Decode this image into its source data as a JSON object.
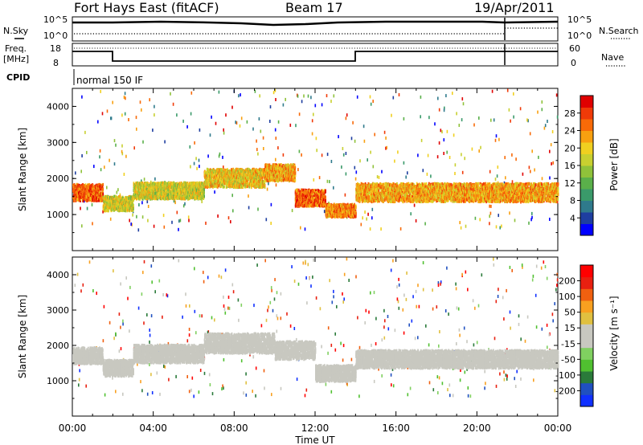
{
  "header": {
    "station": "Fort Hays East (fitACF)",
    "beam": "Beam 17",
    "date": "19/Apr/2011"
  },
  "status_rows": {
    "nsky_label": "N.Sky",
    "nsearch_label": "N.Search",
    "nsky_ticks": [
      "10^5",
      "10^0"
    ],
    "nsearch_ticks": [
      "10^5",
      "10^0"
    ],
    "freq_label_line1": "Freq.",
    "freq_label_line2": "[MHz]",
    "freq_ticks": [
      "18",
      "8"
    ],
    "nave_label": "Nave",
    "nave_ticks": [
      "60",
      "0"
    ],
    "cpid_label": "CPID",
    "cpid_value": "normal 150 IF"
  },
  "colors": {
    "power_scale": [
      "#0000ff",
      "#1e3ea0",
      "#2f7a8c",
      "#3a9a6a",
      "#5ab04a",
      "#8fc23a",
      "#c8d030",
      "#f0d020",
      "#f8a010",
      "#f86a08",
      "#f03a08",
      "#e00000"
    ],
    "velocity_scale": [
      "#1030ff",
      "#2050c0",
      "#2a7a3a",
      "#50c030",
      "#80d060",
      "#c8c8c0",
      "#c8c8c0",
      "#e0c040",
      "#f8a020",
      "#f06010",
      "#e82010",
      "#ff0000"
    ]
  },
  "chart_data": [
    {
      "type": "heatmap",
      "name": "power",
      "ylabel": "Slant Range [km]",
      "yticks": [
        "1000",
        "2000",
        "3000",
        "4000"
      ],
      "ylim": [
        0,
        4500
      ],
      "xlim": [
        0,
        24
      ],
      "colorbar_label": "Power [dB]",
      "colorbar_ticks": [
        "28",
        "24",
        "20",
        "16",
        "12",
        "8",
        "4"
      ],
      "colorbar_range": [
        0,
        32
      ],
      "bands": [
        {
          "t": [
            0,
            1.5
          ],
          "center": 1650,
          "width": 450,
          "level": 26
        },
        {
          "t": [
            1.5,
            3.0
          ],
          "center": 1350,
          "width": 400,
          "level": 18
        },
        {
          "t": [
            3.0,
            6.5
          ],
          "center": 1700,
          "width": 450,
          "level": 18
        },
        {
          "t": [
            6.5,
            9.5
          ],
          "center": 2050,
          "width": 500,
          "level": 20
        },
        {
          "t": [
            9.5,
            11.0
          ],
          "center": 2200,
          "width": 450,
          "level": 22
        },
        {
          "t": [
            11.0,
            12.5
          ],
          "center": 1500,
          "width": 450,
          "level": 26
        },
        {
          "t": [
            12.5,
            14.0
          ],
          "center": 1150,
          "width": 350,
          "level": 24
        },
        {
          "t": [
            14.0,
            24.0
          ],
          "center": 1650,
          "width": 500,
          "level": 22
        }
      ]
    },
    {
      "type": "heatmap",
      "name": "velocity",
      "ylabel": "Slant Range [km]",
      "yticks": [
        "1000",
        "2000",
        "3000",
        "4000"
      ],
      "ylim": [
        0,
        4500
      ],
      "xlim": [
        0,
        24
      ],
      "xticks": [
        "00:00",
        "04:00",
        "08:00",
        "12:00",
        "16:00",
        "20:00",
        "00:00"
      ],
      "xlabel": "Time UT",
      "colorbar_label": "Velocity [m s⁻¹]",
      "colorbar_ticks": [
        "200",
        "100",
        "50",
        "15",
        "-15",
        "-50",
        "-100",
        "-200"
      ],
      "colorbar_range": [
        -250,
        250
      ],
      "bands": [
        {
          "t": [
            0,
            1.5
          ],
          "center": 1750,
          "width": 450,
          "level": 0
        },
        {
          "t": [
            1.5,
            3.0
          ],
          "center": 1400,
          "width": 450,
          "level": 0
        },
        {
          "t": [
            3.0,
            6.5
          ],
          "center": 1800,
          "width": 500,
          "level": 0
        },
        {
          "t": [
            6.5,
            10.0
          ],
          "center": 2100,
          "width": 550,
          "level": 0
        },
        {
          "t": [
            10.0,
            12.0
          ],
          "center": 1900,
          "width": 500,
          "level": 0
        },
        {
          "t": [
            12.0,
            14.0
          ],
          "center": 1250,
          "width": 450,
          "level": 0
        },
        {
          "t": [
            14.0,
            24.0
          ],
          "center": 1650,
          "width": 500,
          "level": 0
        }
      ]
    }
  ]
}
